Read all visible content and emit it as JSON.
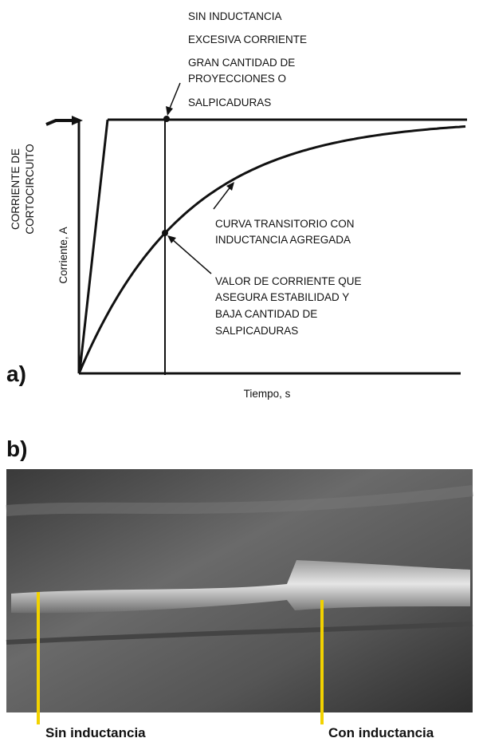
{
  "panel_a": {
    "label": "a)",
    "y_axis_label": "Corriente, A",
    "x_axis_label": "Tiempo, s",
    "short_circuit_label": [
      "CORRIENTE DE",
      "CORTOCIRCUITO"
    ],
    "no_inductance_note": [
      "SIN INDUCTANCIA",
      "EXCESIVA CORRIENTE",
      "GRAN CANTIDAD DE",
      "PROYECCIONES O",
      "SALPICADURAS"
    ],
    "curve_note": [
      "CURVA  TRANSITORIO CON",
      "INDUCTANCIA AGREGADA"
    ],
    "value_note": [
      "VALOR DE CORRIENTE QUE",
      "ASEGURA ESTABILIDAD Y",
      "BAJA CANTIDAD DE",
      "SALPICADURAS"
    ]
  },
  "panel_b": {
    "label": "b)",
    "callouts": [
      "Sin inductancia",
      "Con inductancia"
    ]
  }
}
